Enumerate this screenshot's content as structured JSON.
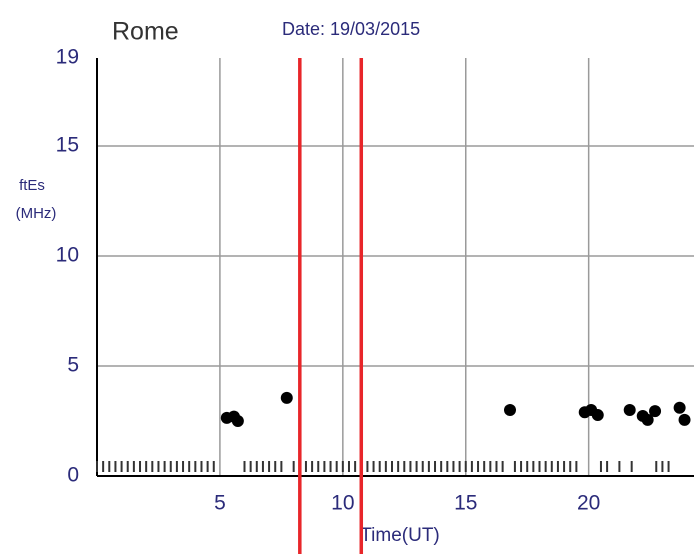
{
  "chart_data": {
    "type": "scatter",
    "title": "Rome",
    "subtitle": "Date: 19/03/2015",
    "y_label": [
      "ftEs",
      "(MHz)"
    ],
    "x_label": "Time(UT)",
    "xlim": [
      0,
      24
    ],
    "xticks": [
      5,
      10,
      15,
      20
    ],
    "ylim": [
      0,
      19
    ],
    "yticks": [
      0,
      5,
      10,
      15,
      19
    ],
    "grid": true,
    "vlines": [
      8.25,
      10.75
    ],
    "vline_color": "#e8262a",
    "series": [
      {
        "color": "#000000",
        "x": [
          5.28,
          5.57,
          5.73,
          7.72,
          16.8,
          19.84,
          20.1,
          20.37,
          21.67,
          22.2,
          22.4,
          22.7,
          23.7,
          23.9
        ],
        "values": [
          2.64,
          2.7,
          2.5,
          3.55,
          3.0,
          2.9,
          3.0,
          2.77,
          3.0,
          2.73,
          2.55,
          2.95,
          3.1,
          2.55
        ]
      },
      {
        "type": "rug",
        "color": "#333333",
        "x": [
          0,
          0.25,
          0.5,
          0.75,
          1,
          1.25,
          1.5,
          1.75,
          2,
          2.25,
          2.5,
          2.75,
          3,
          3.25,
          3.5,
          3.75,
          4,
          4.25,
          4.5,
          4.75,
          6,
          6.25,
          6.5,
          6.75,
          7,
          7.25,
          7.5,
          8,
          8.25,
          8.5,
          8.75,
          9,
          9.25,
          9.5,
          9.75,
          10,
          10.25,
          10.5,
          10.75,
          11,
          11.25,
          11.5,
          11.75,
          12,
          12.25,
          12.5,
          12.75,
          13,
          13.25,
          13.5,
          13.75,
          14,
          14.25,
          14.5,
          14.75,
          15,
          15.25,
          15.5,
          15.75,
          16,
          16.25,
          16.5,
          17,
          17.25,
          17.5,
          17.75,
          18,
          18.25,
          18.5,
          18.75,
          19,
          19.25,
          19.5,
          20.5,
          20.75,
          21.25,
          21.75,
          22.75,
          23,
          23.25
        ]
      }
    ]
  }
}
